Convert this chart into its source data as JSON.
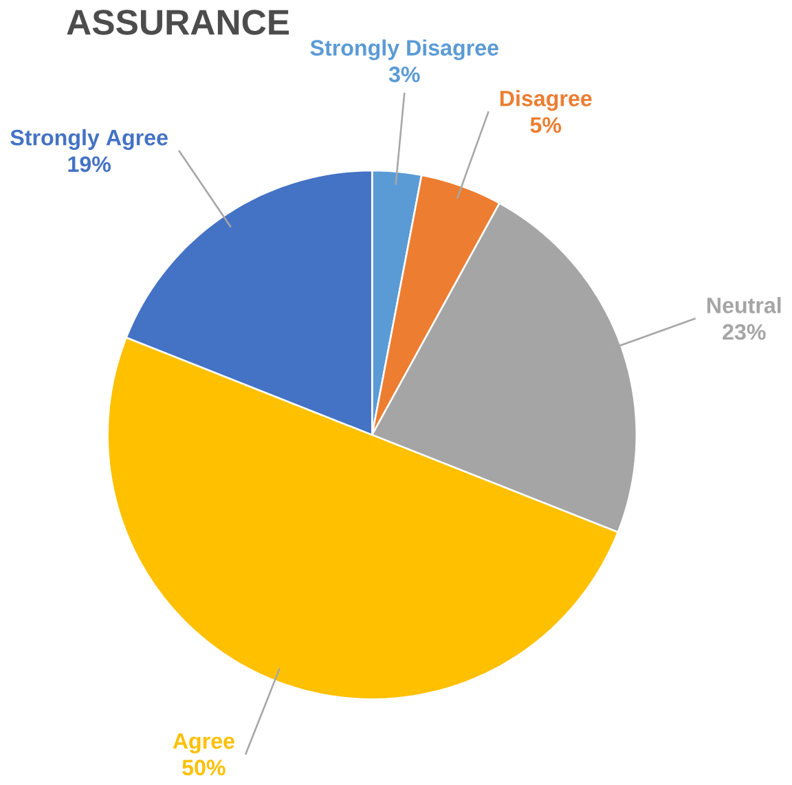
{
  "chart_data": {
    "type": "pie",
    "title": "ASSURANCE",
    "categories": [
      "Strongly Disagree",
      "Disagree",
      "Neutral",
      "Agree",
      "Strongly Agree"
    ],
    "values": [
      3,
      5,
      23,
      50,
      19
    ],
    "value_labels": [
      "3%",
      "5%",
      "23%",
      "50%",
      "19%"
    ],
    "colors": [
      "#5b9bd5",
      "#ed7d31",
      "#a5a5a5",
      "#ffc000",
      "#4472c4"
    ]
  }
}
